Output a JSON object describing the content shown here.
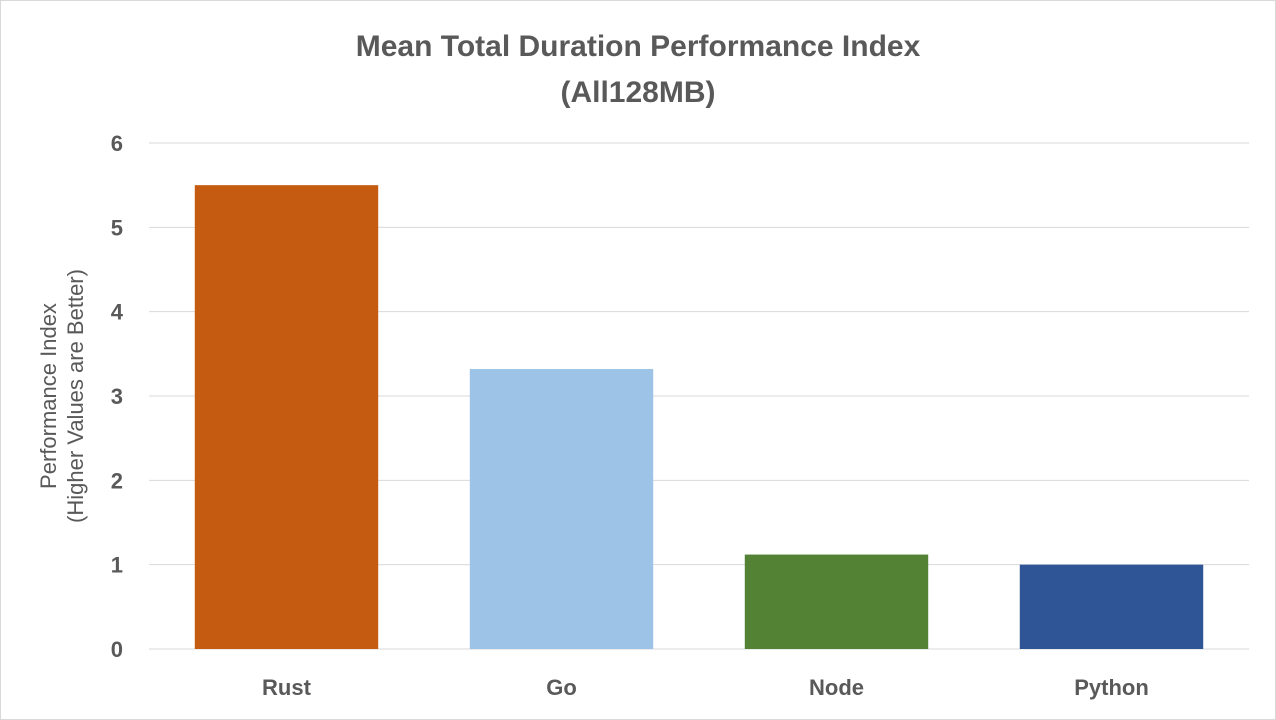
{
  "chart_data": {
    "type": "bar",
    "title": "Mean Total Duration Performance Index",
    "subtitle": "(All128MB)",
    "xlabel": "",
    "ylabel": "Performance Index",
    "ylabel_sub": "(Higher Values are Better)",
    "categories": [
      "Rust",
      "Go",
      "Node",
      "Python"
    ],
    "values": [
      5.5,
      3.32,
      1.12,
      1.0
    ],
    "colors": [
      "#c55a11",
      "#9dc3e6",
      "#548235",
      "#2f5597"
    ],
    "ylim": [
      0,
      6
    ],
    "yticks": [
      "0",
      "1",
      "2",
      "3",
      "4",
      "5",
      "6"
    ],
    "grid": true,
    "legend": "none"
  }
}
